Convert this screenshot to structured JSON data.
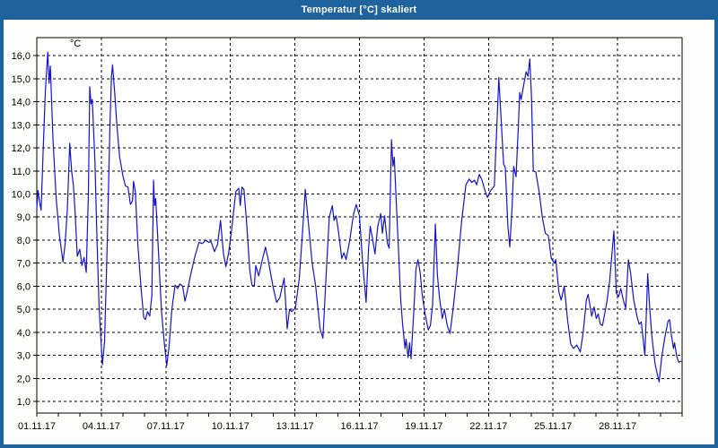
{
  "window": {
    "title": "Temperatur [°C] skaliert",
    "titlebar_color": "#1e639c",
    "border_color": "#1e639c",
    "content_background": "#fdfffd",
    "plot_background": "#fefffe"
  },
  "chart_data": {
    "type": "line",
    "title": "Temperatur [°C] skaliert",
    "ylabel": "°C",
    "xlabel": "",
    "legend": "none",
    "grid": "dashed",
    "grid_color": "#000000",
    "axis_color": "#000000",
    "line_color": "#1414cc",
    "ylim": [
      0.5,
      16.78
    ],
    "x_range_days": [
      0,
      30
    ],
    "x_minor_tick_every_days": 1,
    "x_gridline_every_days": 3,
    "y_unit_label": "°C",
    "y_ticks": [
      {
        "value": 1,
        "label": "1,0"
      },
      {
        "value": 2,
        "label": "2,0"
      },
      {
        "value": 3,
        "label": "3,0"
      },
      {
        "value": 4,
        "label": "4,0"
      },
      {
        "value": 5,
        "label": "5,0"
      },
      {
        "value": 6,
        "label": "6,0"
      },
      {
        "value": 7,
        "label": "7,0"
      },
      {
        "value": 8,
        "label": "8,0"
      },
      {
        "value": 9,
        "label": "9,0"
      },
      {
        "value": 10,
        "label": "10,0"
      },
      {
        "value": 11,
        "label": "11,0"
      },
      {
        "value": 12,
        "label": "12,0"
      },
      {
        "value": 13,
        "label": "13,0"
      },
      {
        "value": 14,
        "label": "14,0"
      },
      {
        "value": 15,
        "label": "15,0"
      },
      {
        "value": 16,
        "label": "16,0"
      }
    ],
    "x_ticks": [
      {
        "day": 0,
        "label": "01.11.17"
      },
      {
        "day": 3,
        "label": "04.11.17"
      },
      {
        "day": 6,
        "label": "07.11.17"
      },
      {
        "day": 9,
        "label": "10.11.17"
      },
      {
        "day": 12,
        "label": "13.11.17"
      },
      {
        "day": 15,
        "label": "16.11.17"
      },
      {
        "day": 18,
        "label": "19.11.17"
      },
      {
        "day": 21,
        "label": "22.11.17"
      },
      {
        "day": 24,
        "label": "25.11.17"
      },
      {
        "day": 27,
        "label": "28.11.17"
      }
    ],
    "series": [
      {
        "name": "Temperatur",
        "points": [
          [
            0,
            9.4
          ],
          [
            0.06,
            10.15
          ],
          [
            0.12,
            9.7
          ],
          [
            0.2,
            9.3
          ],
          [
            0.3,
            12
          ],
          [
            0.4,
            14.5
          ],
          [
            0.51,
            16.15
          ],
          [
            0.57,
            14.8
          ],
          [
            0.63,
            15.55
          ],
          [
            0.75,
            12.4
          ],
          [
            0.9,
            9.8
          ],
          [
            1.05,
            8.2
          ],
          [
            1.22,
            7.05
          ],
          [
            1.32,
            7.85
          ],
          [
            1.42,
            9.3
          ],
          [
            1.53,
            12.2
          ],
          [
            1.62,
            11
          ],
          [
            1.7,
            10.4
          ],
          [
            1.78,
            9.2
          ],
          [
            1.88,
            7.3
          ],
          [
            2,
            7.6
          ],
          [
            2.1,
            6.9
          ],
          [
            2.2,
            7.25
          ],
          [
            2.3,
            6.6
          ],
          [
            2.4,
            10
          ],
          [
            2.46,
            14.65
          ],
          [
            2.52,
            13.9
          ],
          [
            2.58,
            14.1
          ],
          [
            2.7,
            11.5
          ],
          [
            2.8,
            8
          ],
          [
            2.9,
            5
          ],
          [
            3.05,
            2.6
          ],
          [
            3.15,
            3.6
          ],
          [
            3.28,
            8
          ],
          [
            3.4,
            13
          ],
          [
            3.47,
            15.1
          ],
          [
            3.52,
            15.6
          ],
          [
            3.62,
            14.4
          ],
          [
            3.72,
            13
          ],
          [
            3.85,
            11.6
          ],
          [
            4,
            10.8
          ],
          [
            4.12,
            10.35
          ],
          [
            4.24,
            10.3
          ],
          [
            4.35,
            9.55
          ],
          [
            4.45,
            9.7
          ],
          [
            4.5,
            10.55
          ],
          [
            4.58,
            10.1
          ],
          [
            4.7,
            7.8
          ],
          [
            4.85,
            5.9
          ],
          [
            4.97,
            4.65
          ],
          [
            5.05,
            4.55
          ],
          [
            5.15,
            4.9
          ],
          [
            5.25,
            4.7
          ],
          [
            5.35,
            5.6
          ],
          [
            5.43,
            10.6
          ],
          [
            5.48,
            9.5
          ],
          [
            5.53,
            9.8
          ],
          [
            5.63,
            8
          ],
          [
            5.72,
            6.3
          ],
          [
            5.8,
            4.9
          ],
          [
            5.92,
            3.6
          ],
          [
            6.04,
            2.55
          ],
          [
            6.15,
            3.4
          ],
          [
            6.28,
            5
          ],
          [
            6.43,
            6.05
          ],
          [
            6.55,
            5.9
          ],
          [
            6.65,
            6.1
          ],
          [
            6.78,
            6
          ],
          [
            6.89,
            5.35
          ],
          [
            7,
            5.8
          ],
          [
            7.15,
            6.5
          ],
          [
            7.35,
            7.3
          ],
          [
            7.54,
            7.9
          ],
          [
            7.7,
            7.85
          ],
          [
            7.85,
            8
          ],
          [
            8,
            7.9
          ],
          [
            8.1,
            7.95
          ],
          [
            8.26,
            7.5
          ],
          [
            8.4,
            7.8
          ],
          [
            8.54,
            8.85
          ],
          [
            8.68,
            7.4
          ],
          [
            8.79,
            6.85
          ],
          [
            8.93,
            7.5
          ],
          [
            9.1,
            8.8
          ],
          [
            9.25,
            10.1
          ],
          [
            9.39,
            10.25
          ],
          [
            9.46,
            9.5
          ],
          [
            9.54,
            10.3
          ],
          [
            9.63,
            10.2
          ],
          [
            9.75,
            8.8
          ],
          [
            9.9,
            6.7
          ],
          [
            10,
            6.05
          ],
          [
            10.11,
            6
          ],
          [
            10.18,
            6.9
          ],
          [
            10.32,
            6.45
          ],
          [
            10.5,
            7.2
          ],
          [
            10.63,
            7.7
          ],
          [
            10.75,
            7.2
          ],
          [
            10.88,
            6.5
          ],
          [
            11,
            5.9
          ],
          [
            11.15,
            5.3
          ],
          [
            11.3,
            5.5
          ],
          [
            11.5,
            6.35
          ],
          [
            11.64,
            4.15
          ],
          [
            11.75,
            5
          ],
          [
            11.85,
            4.9
          ],
          [
            12.02,
            5.05
          ],
          [
            12.2,
            6.3
          ],
          [
            12.35,
            8.3
          ],
          [
            12.48,
            10.2
          ],
          [
            12.6,
            9
          ],
          [
            12.8,
            7
          ],
          [
            12.96,
            6.05
          ],
          [
            13.17,
            4.15
          ],
          [
            13.3,
            3.75
          ],
          [
            13.45,
            6.5
          ],
          [
            13.6,
            9
          ],
          [
            13.74,
            9.5
          ],
          [
            13.82,
            8.85
          ],
          [
            13.92,
            9.05
          ],
          [
            14.05,
            8.2
          ],
          [
            14.18,
            7.2
          ],
          [
            14.28,
            7.45
          ],
          [
            14.38,
            7.15
          ],
          [
            14.55,
            8
          ],
          [
            14.72,
            9.1
          ],
          [
            14.85,
            9.55
          ],
          [
            15,
            9.05
          ],
          [
            15.15,
            7
          ],
          [
            15.31,
            5.3
          ],
          [
            15.42,
            7.6
          ],
          [
            15.5,
            8.6
          ],
          [
            15.6,
            8.1
          ],
          [
            15.72,
            7.4
          ],
          [
            15.85,
            8.6
          ],
          [
            15.99,
            9.15
          ],
          [
            16.07,
            8.3
          ],
          [
            16.17,
            9.05
          ],
          [
            16.3,
            7.85
          ],
          [
            16.38,
            7.65
          ],
          [
            16.49,
            12.35
          ],
          [
            16.56,
            11.2
          ],
          [
            16.62,
            11.6
          ],
          [
            16.72,
            9.5
          ],
          [
            16.82,
            7.5
          ],
          [
            16.92,
            5.4
          ],
          [
            17.01,
            4.3
          ],
          [
            17.12,
            3.3
          ],
          [
            17.17,
            3.7
          ],
          [
            17.26,
            2.9
          ],
          [
            17.33,
            3.55
          ],
          [
            17.4,
            2.85
          ],
          [
            17.52,
            4.8
          ],
          [
            17.63,
            6.75
          ],
          [
            17.72,
            7.15
          ],
          [
            17.82,
            6.6
          ],
          [
            17.92,
            5.6
          ],
          [
            18.05,
            4.8
          ],
          [
            18.2,
            4.1
          ],
          [
            18.3,
            4.3
          ],
          [
            18.4,
            5.2
          ],
          [
            18.53,
            8.7
          ],
          [
            18.62,
            6.5
          ],
          [
            18.72,
            5.5
          ],
          [
            18.85,
            4.6
          ],
          [
            18.95,
            5
          ],
          [
            19.08,
            4.3
          ],
          [
            19.21,
            3.95
          ],
          [
            19.35,
            5
          ],
          [
            19.53,
            6.55
          ],
          [
            19.75,
            8.8
          ],
          [
            19.95,
            10.4
          ],
          [
            20.1,
            10.65
          ],
          [
            20.22,
            10.5
          ],
          [
            20.35,
            10.6
          ],
          [
            20.45,
            10.4
          ],
          [
            20.57,
            10.85
          ],
          [
            20.7,
            10.6
          ],
          [
            20.85,
            10.1
          ],
          [
            20.95,
            9.85
          ],
          [
            21.1,
            10.15
          ],
          [
            21.27,
            10.35
          ],
          [
            21.48,
            15.05
          ],
          [
            21.6,
            13
          ],
          [
            21.7,
            11.3
          ],
          [
            21.78,
            11.15
          ],
          [
            21.9,
            8.6
          ],
          [
            21.99,
            7.7
          ],
          [
            22.1,
            9.5
          ],
          [
            22.17,
            11.2
          ],
          [
            22.28,
            10.75
          ],
          [
            22.38,
            12.8
          ],
          [
            22.45,
            14.4
          ],
          [
            22.52,
            14.1
          ],
          [
            22.65,
            14.8
          ],
          [
            22.75,
            15.3
          ],
          [
            22.83,
            15.1
          ],
          [
            22.92,
            15.85
          ],
          [
            23,
            14.2
          ],
          [
            23.08,
            11
          ],
          [
            23.2,
            10.95
          ],
          [
            23.36,
            10.05
          ],
          [
            23.5,
            9
          ],
          [
            23.64,
            8.3
          ],
          [
            23.78,
            8.2
          ],
          [
            23.92,
            7.2
          ],
          [
            24.06,
            7
          ],
          [
            24.13,
            7.15
          ],
          [
            24.27,
            5.75
          ],
          [
            24.38,
            5.4
          ],
          [
            24.52,
            6
          ],
          [
            24.68,
            4.5
          ],
          [
            24.82,
            3.5
          ],
          [
            24.95,
            3.3
          ],
          [
            25.1,
            3.45
          ],
          [
            25.27,
            3.15
          ],
          [
            25.4,
            4
          ],
          [
            25.55,
            5.4
          ],
          [
            25.63,
            5.65
          ],
          [
            25.8,
            4.7
          ],
          [
            25.91,
            5.1
          ],
          [
            26.01,
            4.6
          ],
          [
            26.1,
            4.8
          ],
          [
            26.2,
            4.35
          ],
          [
            26.3,
            4.3
          ],
          [
            26.5,
            5.3
          ],
          [
            26.63,
            6.2
          ],
          [
            26.83,
            8.4
          ],
          [
            26.94,
            5.7
          ],
          [
            27.05,
            5.55
          ],
          [
            27.15,
            5.9
          ],
          [
            27.28,
            5.35
          ],
          [
            27.38,
            5.05
          ],
          [
            27.5,
            7.15
          ],
          [
            27.6,
            6.6
          ],
          [
            27.75,
            5.4
          ],
          [
            27.9,
            4.7
          ],
          [
            28,
            4.35
          ],
          [
            28.1,
            4.45
          ],
          [
            28.2,
            3.6
          ],
          [
            28.27,
            3
          ],
          [
            28.4,
            6.55
          ],
          [
            28.5,
            5
          ],
          [
            28.6,
            3.8
          ],
          [
            28.75,
            2.6
          ],
          [
            28.93,
            1.85
          ],
          [
            29.05,
            2.9
          ],
          [
            29.2,
            3.8
          ],
          [
            29.35,
            4.5
          ],
          [
            29.42,
            4.55
          ],
          [
            29.5,
            3.9
          ],
          [
            29.6,
            3.3
          ],
          [
            29.65,
            3.55
          ],
          [
            29.75,
            2.95
          ],
          [
            29.85,
            2.7
          ],
          [
            29.95,
            2.75
          ]
        ]
      }
    ]
  }
}
